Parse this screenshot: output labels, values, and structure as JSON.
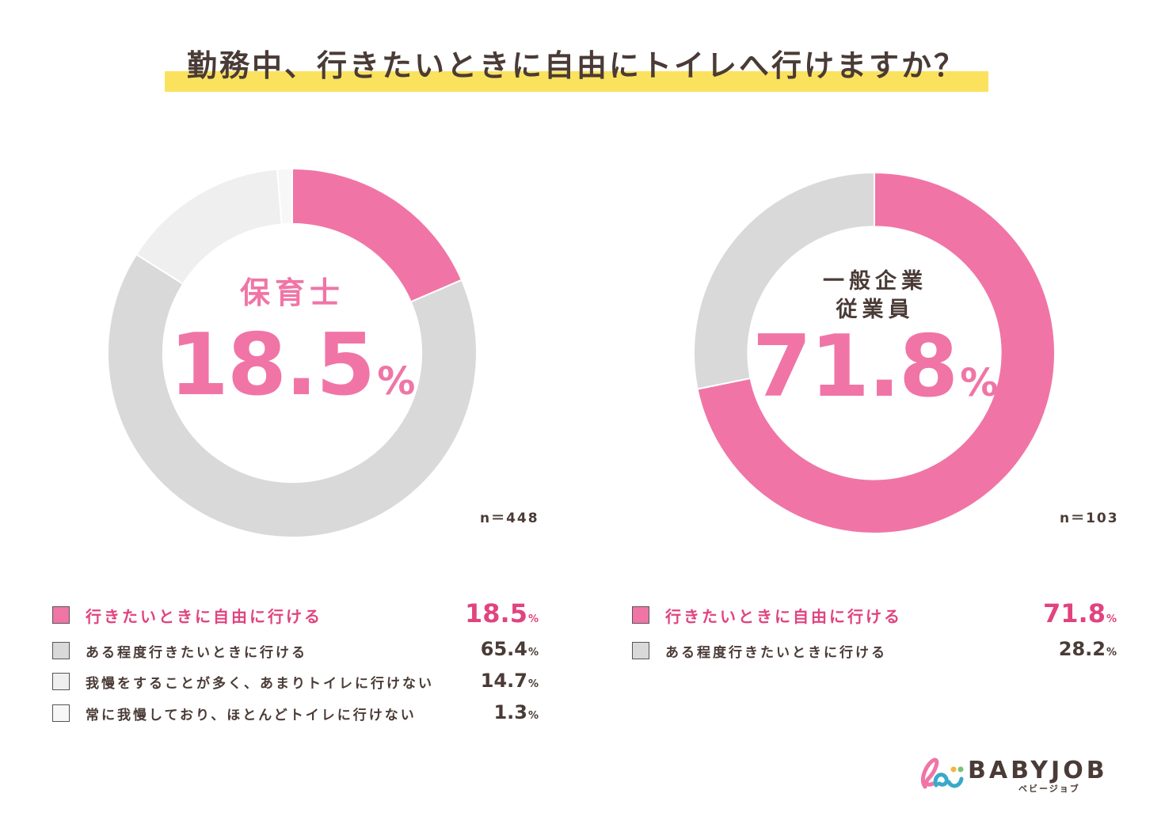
{
  "title": "勤務中、行きたいときに自由にトイレへ行けますか？",
  "colors": {
    "accent": "#f075a6",
    "gray": "#d9d9d9",
    "light_gray": "#efefef",
    "lightest_gray": "#f7f7f7",
    "highlight": "#fbe25e",
    "text": "#4a3b36"
  },
  "chart_data": [
    {
      "type": "pie",
      "title": "保育士",
      "center_value": "18.5",
      "center_unit": "%",
      "n_label": "n＝448",
      "categories": [
        "行きたいときに自由に行ける",
        "ある程度行きたいときに行ける",
        "我慢をすることが多く、あまりトイレに行けない",
        "常に我慢しており、ほとんどトイレに行けない"
      ],
      "values": [
        18.5,
        65.4,
        14.7,
        1.3
      ],
      "value_labels": [
        "18.5",
        "65.4",
        "14.7",
        "1.3"
      ],
      "unit": "%",
      "colors": [
        "#f075a6",
        "#d9d9d9",
        "#efefef",
        "#f7f7f7"
      ]
    },
    {
      "type": "pie",
      "title_lines": [
        "一般企業",
        "従業員"
      ],
      "center_value": "71.8",
      "center_unit": "%",
      "n_label": "n＝103",
      "categories": [
        "行きたいときに自由に行ける",
        "ある程度行きたいときに行ける"
      ],
      "values": [
        71.8,
        28.2
      ],
      "value_labels": [
        "71.8",
        "28.2"
      ],
      "unit": "%",
      "colors": [
        "#f075a6",
        "#d9d9d9"
      ]
    }
  ],
  "logo": {
    "icon": "babyjob-logo-icon",
    "text": "BABYJOB",
    "subtext": "ベビージョブ"
  }
}
